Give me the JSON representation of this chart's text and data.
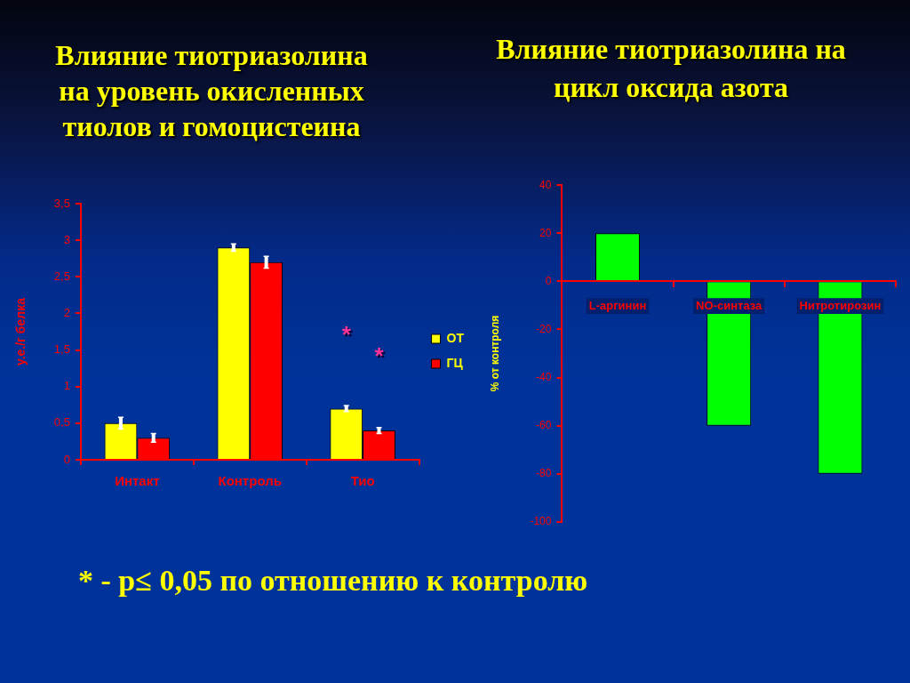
{
  "chart_data": [
    {
      "type": "bar",
      "title": "Влияние тиотриазолина на уровень окисленных тиолов и гомоцистеина",
      "ylabel": "у.е./г белка",
      "categories": [
        "Интакт",
        "Контроль",
        "Тио"
      ],
      "series": [
        {
          "name": "ОТ",
          "color": "#ffff00",
          "values": [
            0.5,
            2.9,
            0.7
          ],
          "errors": [
            0.08,
            0.05,
            0.04
          ]
        },
        {
          "name": "ГЦ",
          "color": "#ff0000",
          "values": [
            0.3,
            2.7,
            0.4
          ],
          "errors": [
            0.06,
            0.08,
            0.04
          ]
        }
      ],
      "ylim": [
        0,
        3.5
      ],
      "yticks": [
        0,
        {
          "value": 0.5,
          "label": "0,5"
        },
        1,
        {
          "value": 1.5,
          "label": "1,5"
        },
        2,
        {
          "value": 2.5,
          "label": "2,5"
        },
        3,
        {
          "value": 3.5,
          "label": "3,5"
        }
      ],
      "legend": "right",
      "annotations": [
        {
          "text": "*",
          "x": "Тио",
          "y": 0.7
        },
        {
          "text": "*",
          "x": "Тио",
          "y": 0.4
        },
        "* - p≤ 0,05 по отношению к контролю"
      ]
    },
    {
      "type": "bar",
      "title": "Влияние тиотриазолина на цикл оксида азота",
      "ylabel": "% от контроля",
      "categories": [
        "L-аргинин",
        "NO-синтаза",
        "Нитротирозин"
      ],
      "values": [
        20,
        -60,
        -80
      ],
      "color": "#00ff00",
      "ylim": [
        -100,
        40
      ],
      "yticks": [
        -100,
        -80,
        -60,
        -40,
        -20,
        0,
        20,
        40
      ]
    }
  ]
}
